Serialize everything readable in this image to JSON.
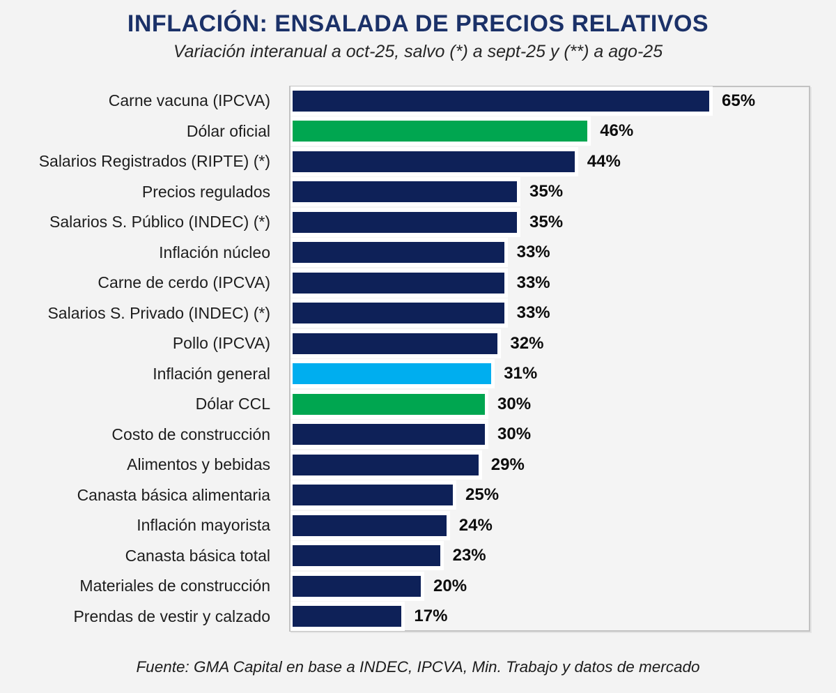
{
  "page": {
    "background": "#f3f3f3"
  },
  "header": {
    "title": "INFLACIÓN: ENSALADA DE PRECIOS RELATIVOS",
    "subtitle": "Variación interanual a oct-25, salvo (*) a sept-25 y (**) a ago-25"
  },
  "footer": {
    "source": "Fuente: GMA Capital en base a INDEC, IPCVA, Min. Trabajo y datos de mercado"
  },
  "palette": {
    "navy": "#0e2158",
    "green": "#00a650",
    "cyan": "#00aeef",
    "title_navy": "#1b3168",
    "plot_border": "#c2c2c2",
    "plot_background": "#f4f4f4",
    "bar_outline": "#ffffff",
    "label_text": "#1d1d1d",
    "value_text": "#0d0d0d"
  },
  "chart_data": {
    "type": "bar",
    "orientation": "horizontal",
    "title": "INFLACIÓN: ENSALADA DE PRECIOS RELATIVOS",
    "subtitle": "Variación interanual a oct-25, salvo (*) a sept-25 y (**) a ago-25",
    "source": "Fuente: GMA Capital en base a INDEC, IPCVA, Min. Trabajo y datos de mercado",
    "unit": "%",
    "xlabel": "",
    "ylabel": "",
    "xlim": [
      0,
      82
    ],
    "grid": false,
    "legend": false,
    "data_labels": true,
    "categories": [
      "Carne vacuna (IPCVA)",
      "Dólar oficial",
      "Salarios Registrados (RIPTE) (*)",
      "Precios regulados",
      "Salarios S. Público (INDEC) (*)",
      "Inflación núcleo",
      "Carne de cerdo (IPCVA)",
      "Salarios S. Privado (INDEC) (*)",
      "Pollo (IPCVA)",
      "Inflación general",
      "Dólar CCL",
      "Costo de construcción",
      "Alimentos y bebidas",
      "Canasta básica alimentaria",
      "Inflación mayorista",
      "Canasta básica total",
      "Materiales de construcción",
      "Prendas de vestir y calzado"
    ],
    "values": [
      65,
      46,
      44,
      35,
      35,
      33,
      33,
      33,
      32,
      31,
      30,
      30,
      29,
      25,
      24,
      23,
      20,
      17
    ],
    "value_labels": [
      "65%",
      "46%",
      "44%",
      "35%",
      "35%",
      "33%",
      "33%",
      "33%",
      "32%",
      "31%",
      "30%",
      "30%",
      "29%",
      "25%",
      "24%",
      "23%",
      "20%",
      "17%"
    ],
    "colors": [
      "navy",
      "green",
      "navy",
      "navy",
      "navy",
      "navy",
      "navy",
      "navy",
      "navy",
      "cyan",
      "green",
      "navy",
      "navy",
      "navy",
      "navy",
      "navy",
      "navy",
      "navy"
    ]
  }
}
